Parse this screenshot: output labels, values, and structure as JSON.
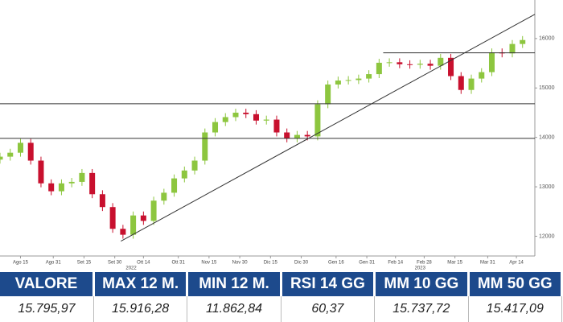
{
  "chart_data": {
    "type": "candlestick",
    "x": [
      "2022-08-05",
      "2022-08-10",
      "2022-08-15",
      "2022-08-20",
      "2022-08-25",
      "2022-08-30",
      "2022-09-04",
      "2022-09-09",
      "2022-09-14",
      "2022-09-19",
      "2022-09-24",
      "2022-09-29",
      "2022-10-04",
      "2022-10-09",
      "2022-10-14",
      "2022-10-19",
      "2022-10-24",
      "2022-10-29",
      "2022-11-03",
      "2022-11-08",
      "2022-11-13",
      "2022-11-18",
      "2022-11-23",
      "2022-11-28",
      "2022-12-03",
      "2022-12-08",
      "2022-12-13",
      "2022-12-18",
      "2022-12-23",
      "2022-12-28",
      "2023-01-02",
      "2023-01-07",
      "2023-01-12",
      "2023-01-17",
      "2023-01-22",
      "2023-01-27",
      "2023-02-01",
      "2023-02-06",
      "2023-02-11",
      "2023-02-16",
      "2023-02-21",
      "2023-02-26",
      "2023-03-03",
      "2023-03-08",
      "2023-03-13",
      "2023-03-18",
      "2023-03-23",
      "2023-03-28",
      "2023-04-02",
      "2023-04-07",
      "2023-04-12",
      "2023-04-17"
    ],
    "open": [
      13550,
      13610,
      13690,
      13890,
      13530,
      13070,
      12910,
      13070,
      13100,
      13280,
      12850,
      12590,
      12150,
      12030,
      12420,
      12310,
      12720,
      12880,
      13170,
      13330,
      13530,
      14100,
      14310,
      14410,
      14500,
      14470,
      14340,
      14360,
      14100,
      13980,
      14050,
      14020,
      14670,
      15070,
      15150,
      15160,
      15190,
      15280,
      15510,
      15520,
      15480,
      15470,
      15490,
      15450,
      15610,
      15240,
      14960,
      15190,
      15320,
      15720,
      15700,
      15890
    ],
    "high": [
      13690,
      13770,
      13970,
      13970,
      13610,
      13150,
      13150,
      13180,
      13360,
      13360,
      12930,
      12670,
      12230,
      12500,
      12500,
      12800,
      12960,
      13250,
      13410,
      13610,
      14180,
      14390,
      14490,
      14580,
      14580,
      14550,
      14440,
      14440,
      14180,
      14130,
      14130,
      14750,
      15150,
      15230,
      15240,
      15270,
      15360,
      15590,
      15600,
      15600,
      15560,
      15570,
      15570,
      15690,
      15690,
      15320,
      15270,
      15400,
      15800,
      15800,
      15970,
      16050
    ],
    "low": [
      13470,
      13530,
      13610,
      13450,
      12990,
      12830,
      12830,
      12990,
      13020,
      12770,
      12510,
      12070,
      11950,
      11950,
      12230,
      12230,
      12640,
      12800,
      13090,
      13250,
      13450,
      14020,
      14230,
      14330,
      14390,
      14260,
      14260,
      14020,
      13900,
      13900,
      13940,
      13940,
      14590,
      14990,
      15070,
      15080,
      15110,
      15200,
      15430,
      15400,
      15390,
      15390,
      15370,
      15370,
      15160,
      14880,
      14880,
      15110,
      15240,
      15620,
      15620,
      15810
    ],
    "close": [
      13610,
      13690,
      13890,
      13530,
      13070,
      12910,
      13070,
      13100,
      13280,
      12850,
      12590,
      12150,
      12030,
      12420,
      12310,
      12720,
      12880,
      13170,
      13330,
      13530,
      14100,
      14310,
      14410,
      14500,
      14470,
      14340,
      14360,
      14100,
      13980,
      14050,
      14020,
      14670,
      15070,
      15150,
      15160,
      15190,
      15280,
      15510,
      15520,
      15480,
      15470,
      15490,
      15450,
      15610,
      15240,
      14960,
      15190,
      15320,
      15720,
      15700,
      15890,
      15970
    ],
    "up_color": "#8dc63f",
    "down_color": "#c8102e",
    "lines": [
      {
        "x": [
          "2022-08-05",
          "2023-04-23"
        ],
        "y": [
          14680,
          14680
        ]
      },
      {
        "x": [
          "2022-08-05",
          "2023-04-23"
        ],
        "y": [
          13980,
          13980
        ]
      },
      {
        "x": [
          "2023-02-08",
          "2023-04-23"
        ],
        "y": [
          15710,
          15710
        ]
      },
      {
        "x": [
          "2022-10-03",
          "2023-04-23"
        ],
        "y": [
          11900,
          16490
        ]
      }
    ],
    "line_color": "#333333",
    "xlim": [
      "2022-08-05",
      "2023-04-23"
    ],
    "xticks": [
      {
        "value": "2022-08-15",
        "label": "Ago 15"
      },
      {
        "value": "2022-08-31",
        "label": "Ago 31"
      },
      {
        "value": "2022-09-15",
        "label": "Set 15"
      },
      {
        "value": "2022-09-30",
        "label": "Set 30"
      },
      {
        "value": "2022-10-14",
        "label": "Ott 14"
      },
      {
        "value": "2022-10-31",
        "label": "Ott 31"
      },
      {
        "value": "2022-11-15",
        "label": "Nov 15"
      },
      {
        "value": "2022-11-30",
        "label": "Nov 30"
      },
      {
        "value": "2022-12-15",
        "label": "Dic 15"
      },
      {
        "value": "2022-12-30",
        "label": "Dic 30"
      },
      {
        "value": "2023-01-16",
        "label": "Gen 16"
      },
      {
        "value": "2023-01-31",
        "label": "Gen 31"
      },
      {
        "value": "2023-02-14",
        "label": "Feb 14"
      },
      {
        "value": "2023-02-28",
        "label": "Feb 28"
      },
      {
        "value": "2023-03-15",
        "label": "Mar 15"
      },
      {
        "value": "2023-03-31",
        "label": "Mar 31"
      },
      {
        "value": "2023-04-14",
        "label": "Apr 14"
      }
    ],
    "year_labels": [
      {
        "value": "2022-10-08",
        "label": "2022"
      },
      {
        "value": "2023-02-26",
        "label": "2023"
      }
    ],
    "ylim": [
      11600,
      16780
    ],
    "yticks": [
      12000,
      13000,
      14000,
      15000,
      16000
    ]
  },
  "table": {
    "headers": [
      "VALORE",
      "MAX 12 M.",
      "MIN 12 M.",
      "RSI 14 GG",
      "MM 10 GG",
      "MM 50 GG"
    ],
    "rows": [
      [
        "15.795,97",
        "15.916,28",
        "11.862,84",
        "60,37",
        "15.737,72",
        "15.417,09"
      ]
    ]
  }
}
